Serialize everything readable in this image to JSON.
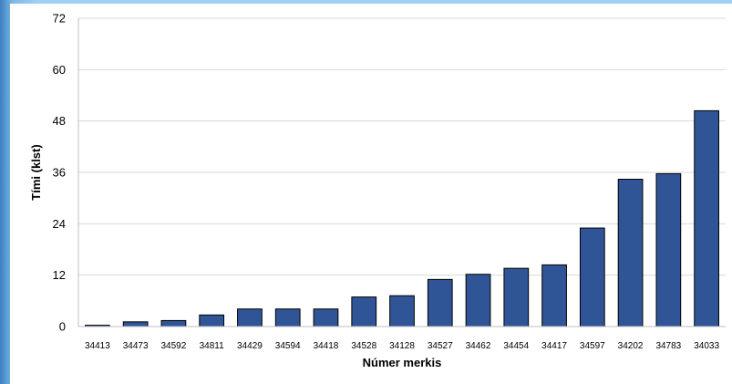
{
  "chart_data": {
    "type": "bar",
    "categories": [
      "34413",
      "34473",
      "34592",
      "34811",
      "34429",
      "34594",
      "34418",
      "34528",
      "34128",
      "34527",
      "34462",
      "34454",
      "34417",
      "34597",
      "34202",
      "34783",
      "34033"
    ],
    "values": [
      0.3,
      1.1,
      1.4,
      2.7,
      4.1,
      4.1,
      4.1,
      6.9,
      7.2,
      11.0,
      12.2,
      13.6,
      14.4,
      23.0,
      34.4,
      35.7,
      50.4
    ],
    "xlabel": "Númer merkis",
    "ylabel": "Tími (klst)",
    "ylim": [
      0,
      72
    ],
    "yticks": [
      0,
      12,
      24,
      36,
      48,
      60,
      72
    ],
    "grid": true,
    "bar_color": "#2f5597",
    "bar_edge_color": "#000000",
    "gridline_color": "#d9d9d9"
  }
}
